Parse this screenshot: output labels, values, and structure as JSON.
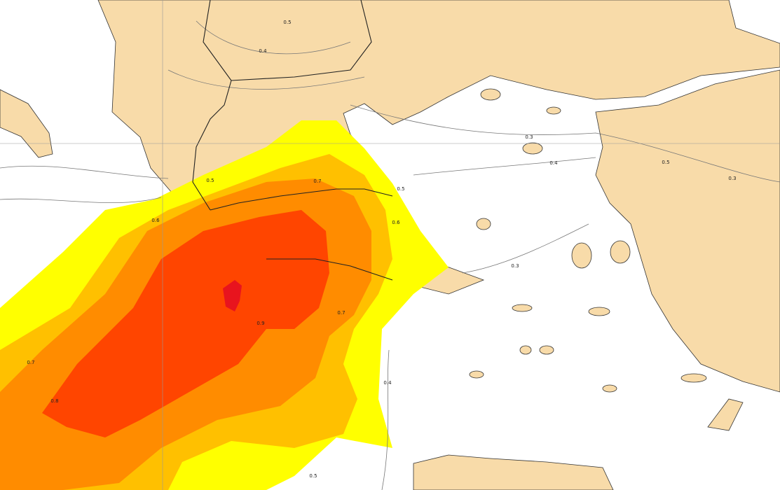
{
  "contour_labels": [
    "0.5",
    "0.4",
    "0.3",
    "0.4",
    "0.5",
    "0.3",
    "0.5",
    "0.7",
    "0.5",
    "0.6",
    "0.6",
    "0.3",
    "0.9",
    "0.7",
    "0.7",
    "0.8",
    "0.5",
    "0.4"
  ]
}
